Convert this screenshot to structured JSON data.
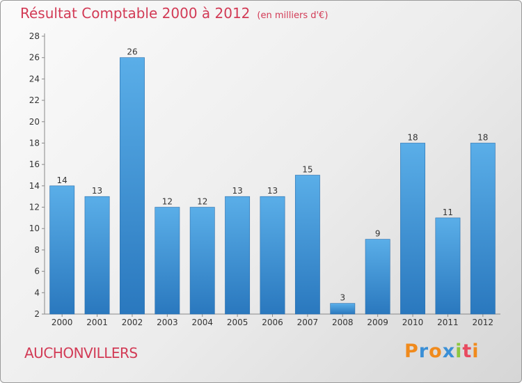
{
  "header": {
    "title": "Résultat Comptable 2000 à 2012",
    "unit": "(en milliers d'€)"
  },
  "place_name": "AUCHONVILLERS",
  "logo": {
    "letters": [
      "P",
      "r",
      "o",
      "x",
      "i",
      "t",
      "i"
    ],
    "colors": [
      "#f08a1c",
      "#3a8fd6",
      "#f08a1c",
      "#3a8fd6",
      "#8cc63f",
      "#e84a5f",
      "#f08a1c"
    ]
  },
  "chart_data": {
    "type": "bar",
    "title": "Résultat Comptable 2000 à 2012",
    "subtitle": "(en milliers d'€)",
    "xlabel": "",
    "ylabel": "",
    "categories": [
      "2000",
      "2001",
      "2002",
      "2003",
      "2004",
      "2005",
      "2006",
      "2007",
      "2008",
      "2009",
      "2010",
      "2011",
      "2012"
    ],
    "values": [
      14,
      13,
      26,
      12,
      12,
      13,
      13,
      15,
      3,
      9,
      18,
      11,
      18
    ],
    "ylim": [
      2,
      28
    ],
    "yticks": [
      2,
      4,
      6,
      8,
      10,
      12,
      14,
      16,
      18,
      20,
      22,
      24,
      26,
      28
    ],
    "grid": false,
    "bar_color": "#3f96d8"
  }
}
